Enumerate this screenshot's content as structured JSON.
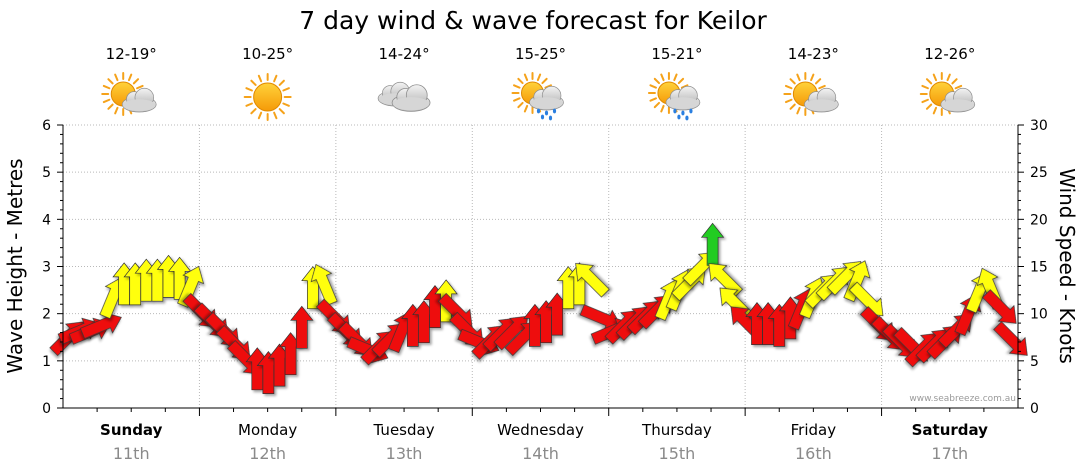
{
  "chart_data": {
    "type": "line",
    "title": "7 day wind & wave forecast for Keilor",
    "ylabel_left": "Wave Height - Metres",
    "ylabel_right": "Wind Speed - Knots",
    "ylim_left": [
      0,
      6
    ],
    "ylim_right": [
      0,
      30
    ],
    "yticks_left": [
      "0",
      "1",
      "2",
      "3",
      "4",
      "5",
      "6"
    ],
    "yticks_right": [
      "0",
      "5",
      "10",
      "15",
      "20",
      "25",
      "30"
    ],
    "grid": true,
    "credit": "www.seabreeze.com.au",
    "days": [
      {
        "name": "Sunday",
        "date": "11th",
        "bold": true,
        "temp": "12-19°",
        "icon": "partly-cloudy-icon"
      },
      {
        "name": "Monday",
        "date": "12th",
        "bold": false,
        "temp": "10-25°",
        "icon": "sunny-icon"
      },
      {
        "name": "Tuesday",
        "date": "13th",
        "bold": false,
        "temp": "14-24°",
        "icon": "cloudy-icon"
      },
      {
        "name": "Wednesday",
        "date": "14th",
        "bold": false,
        "temp": "15-25°",
        "icon": "showers-icon"
      },
      {
        "name": "Thursday",
        "date": "15th",
        "bold": false,
        "temp": "15-21°",
        "icon": "showers-icon"
      },
      {
        "name": "Friday",
        "date": "16th",
        "bold": false,
        "temp": "14-23°",
        "icon": "partly-cloudy-icon"
      },
      {
        "name": "Saturday",
        "date": "17th",
        "bold": true,
        "temp": "12-26°",
        "icon": "partly-cloudy-icon"
      }
    ],
    "series": [
      {
        "name": "Wind Speed - Knots",
        "values": [
          8.4,
          9.0,
          9.0,
          9.6,
          12.6,
          14.0,
          14.0,
          14.4,
          14.4,
          14.8,
          14.6,
          13.8,
          11.0,
          10.0,
          9.0,
          7.6,
          6.0,
          5.0,
          4.6,
          5.4,
          6.6,
          9.4,
          13.6,
          14.0,
          10.4,
          9.0,
          8.0,
          7.0,
          7.4,
          8.2,
          9.0,
          9.6,
          10.0,
          11.6,
          12.2,
          11.0,
          9.0,
          7.8,
          8.0,
          8.8,
          9.0,
          8.4,
          9.6,
          10.0,
          10.8,
          13.6,
          14.0,
          14.6,
          10.4,
          9.0,
          9.6,
          10.0,
          10.6,
          11.2,
          12.4,
          13.4,
          14.2,
          15.8,
          18.2,
          14.6,
          12.0,
          10.0,
          9.8,
          9.8,
          9.6,
          10.4,
          11.4,
          12.6,
          13.4,
          14.2,
          14.8,
          14.4,
          12.2,
          9.6,
          8.6,
          7.8,
          7.4,
          7.2,
          7.6,
          8.0,
          9.2,
          10.8,
          13.2,
          13.6,
          11.4,
          8.0
        ],
        "directions": [
          "SW",
          "WSW",
          "WSW",
          "WSW",
          "SSW",
          "S",
          "S",
          "S",
          "S",
          "S",
          "S",
          "SSW",
          "NW",
          "NW",
          "NW",
          "NW",
          "NW",
          "S",
          "S",
          "S",
          "S",
          "S",
          "S",
          "SSE",
          "NW",
          "NW",
          "NW",
          "WNW",
          "SW",
          "SW",
          "SSW",
          "S",
          "S",
          "S",
          "S",
          "NW",
          "NW",
          "WNW",
          "SW",
          "SW",
          "SW",
          "SW",
          "S",
          "S",
          "S",
          "S",
          "S",
          "SE",
          "WNW",
          "WSW",
          "SW",
          "SW",
          "SW",
          "SW",
          "SSW",
          "SSW",
          "SW",
          "SW",
          "S",
          "SE",
          "SE",
          "SE",
          "S",
          "S",
          "S",
          "S",
          "SSW",
          "SSW",
          "SW",
          "SW",
          "SW",
          "SSW",
          "NW",
          "NW",
          "NW",
          "NW",
          "NW",
          "SW",
          "SW",
          "SW",
          "SW",
          "SSW",
          "SSW",
          "SSE",
          "NW",
          "NW"
        ]
      }
    ]
  },
  "legend_colors": {
    "red": "#ee1111",
    "yellow": "#ffff11",
    "green": "#22cc22",
    "grid": "#b9b9b9"
  }
}
